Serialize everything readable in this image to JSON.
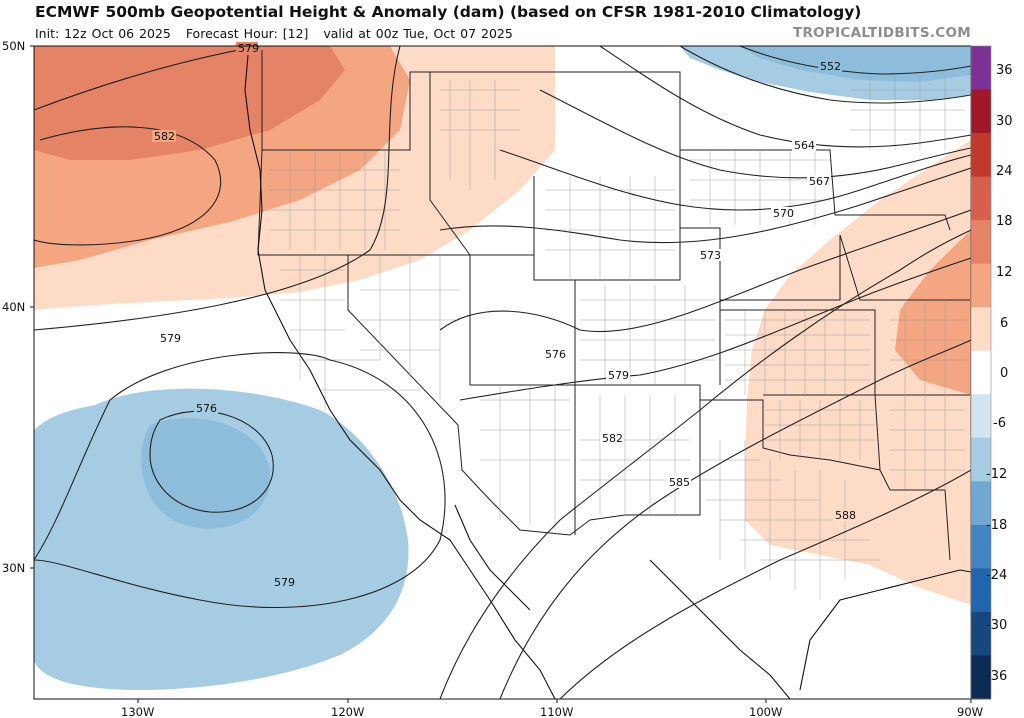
{
  "header": {
    "title": "ECMWF 500mb Geopotential Height & Anomaly (dam) (based on CFSR 1981-2010 Climatology)",
    "init": "Init: 12z Oct 06 2025",
    "forecast_hour": "Forecast Hour: [12]",
    "valid": "valid at 00z Tue, Oct 07 2025",
    "brand": "TROPICALTIDBITS.COM"
  },
  "axes": {
    "latitude_labels": [
      "50N",
      "40N",
      "30N"
    ],
    "longitude_labels": [
      "130W",
      "120W",
      "110W",
      "100W",
      "90W"
    ]
  },
  "contours": {
    "height_labels": [
      "579",
      "582",
      "579",
      "576",
      "579",
      "576",
      "579",
      "582",
      "585",
      "588",
      "573",
      "570",
      "567",
      "564",
      "552"
    ]
  },
  "colorbar": {
    "labels": [
      "36",
      "30",
      "24",
      "18",
      "12",
      "6",
      "0",
      "-6",
      "-12",
      "-18",
      "-24",
      "-30",
      "-36"
    ],
    "colors": [
      "#7b3294",
      "#a1182a",
      "#c0392b",
      "#d6604d",
      "#e58366",
      "#f4a582",
      "#fddbc7",
      "#ffffff",
      "#d1e5f0",
      "#a6cce3",
      "#6fa8d0",
      "#4285c0",
      "#2166ac",
      "#16477d",
      "#0b2b55"
    ]
  }
}
